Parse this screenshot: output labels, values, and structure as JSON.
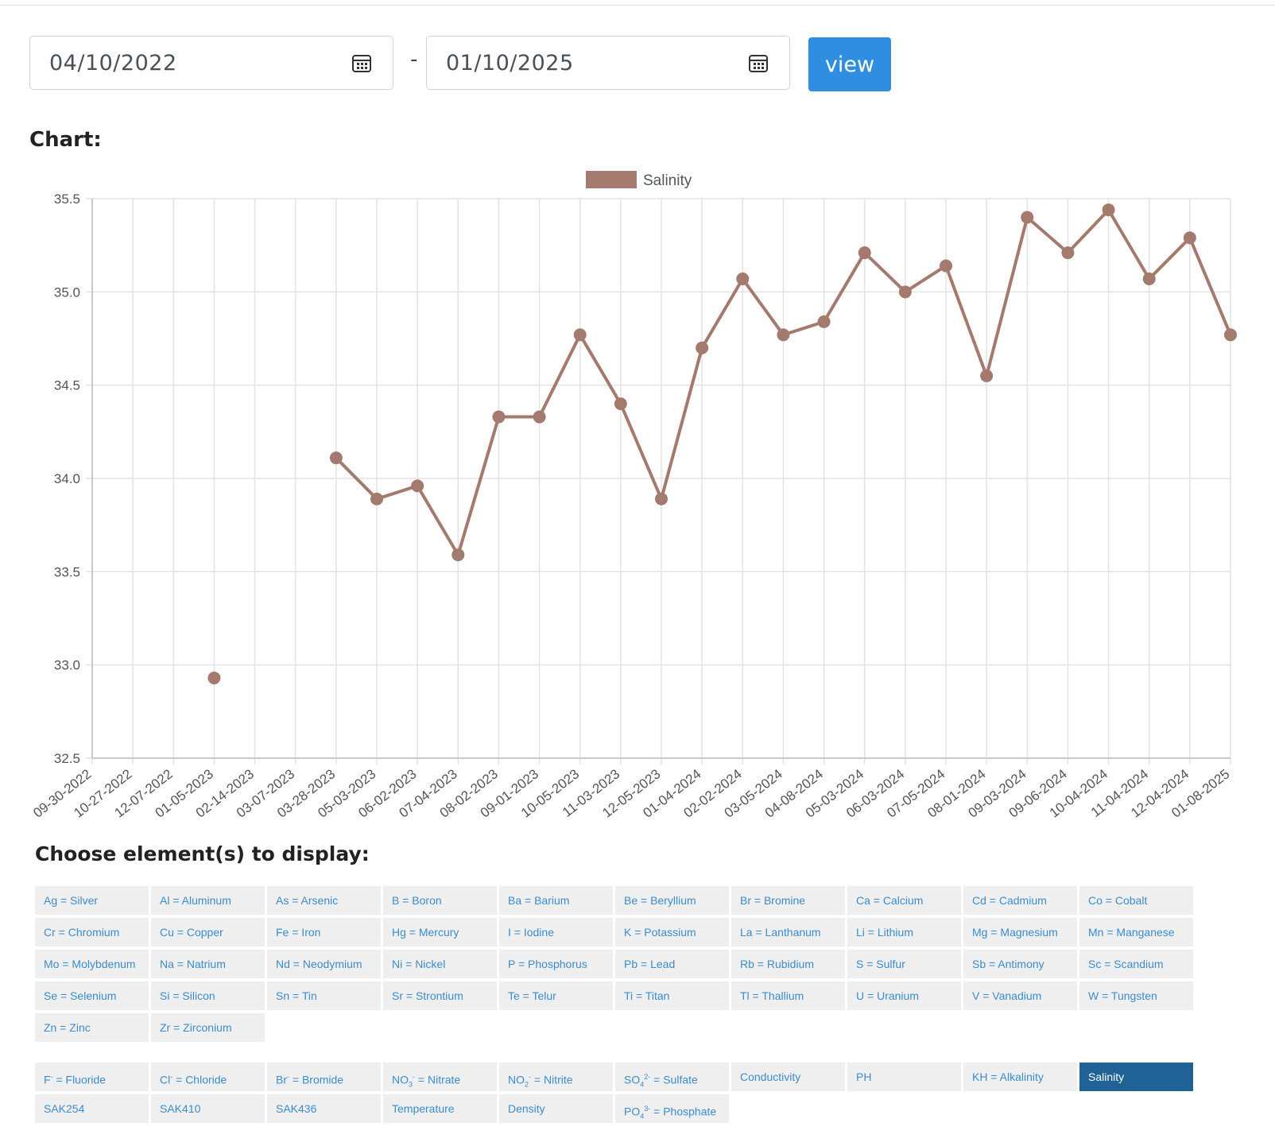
{
  "filters": {
    "start_date": "04/10/2022",
    "separator": "-",
    "end_date": "01/10/2025",
    "view_label": "view"
  },
  "chart_heading": "Chart:",
  "choose_heading": "Choose element(s) to display:",
  "chart_data": {
    "type": "line",
    "title": "",
    "xlabel": "",
    "ylabel": "",
    "ylim": [
      32.5,
      35.5
    ],
    "yticks": [
      "35.5",
      "35.0",
      "34.5",
      "34.0",
      "33.5",
      "33.0",
      "32.5"
    ],
    "grid": true,
    "legend_position": "top-center",
    "categories": [
      "09-30-2022",
      "10-27-2022",
      "12-07-2022",
      "01-05-2023",
      "02-14-2023",
      "03-07-2023",
      "03-28-2023",
      "05-03-2023",
      "06-02-2023",
      "07-04-2023",
      "08-02-2023",
      "09-01-2023",
      "10-05-2023",
      "11-03-2023",
      "12-05-2023",
      "01-04-2024",
      "02-02-2024",
      "03-05-2024",
      "04-08-2024",
      "05-03-2024",
      "06-03-2024",
      "07-05-2024",
      "08-01-2024",
      "09-03-2024",
      "09-06-2024",
      "10-04-2024",
      "11-04-2024",
      "12-04-2024",
      "01-08-2025"
    ],
    "series": [
      {
        "name": "Salinity",
        "color": "#a47a6e",
        "values": [
          null,
          null,
          null,
          32.93,
          null,
          null,
          34.11,
          33.89,
          33.96,
          33.59,
          34.33,
          34.33,
          34.77,
          34.4,
          33.89,
          34.7,
          35.07,
          34.77,
          34.84,
          35.21,
          35.0,
          35.14,
          34.55,
          35.4,
          35.21,
          35.44,
          35.07,
          35.29,
          34.77
        ]
      }
    ]
  },
  "elements": [
    {
      "sym": "Ag",
      "sub": "",
      "sup": "",
      "label": " = Silver",
      "active": false
    },
    {
      "sym": "Al",
      "sub": "",
      "sup": "",
      "label": " = Aluminum",
      "active": false
    },
    {
      "sym": "As",
      "sub": "",
      "sup": "",
      "label": " = Arsenic",
      "active": false
    },
    {
      "sym": "B",
      "sub": "",
      "sup": "",
      "label": " = Boron",
      "active": false
    },
    {
      "sym": "Ba",
      "sub": "",
      "sup": "",
      "label": " = Barium",
      "active": false
    },
    {
      "sym": "Be",
      "sub": "",
      "sup": "",
      "label": " = Beryllium",
      "active": false
    },
    {
      "sym": "Br",
      "sub": "",
      "sup": "",
      "label": " = Bromine",
      "active": false
    },
    {
      "sym": "Ca",
      "sub": "",
      "sup": "",
      "label": " = Calcium",
      "active": false
    },
    {
      "sym": "Cd",
      "sub": "",
      "sup": "",
      "label": " = Cadmium",
      "active": false
    },
    {
      "sym": "Co",
      "sub": "",
      "sup": "",
      "label": " = Cobalt",
      "active": false
    },
    {
      "sym": "Cr",
      "sub": "",
      "sup": "",
      "label": " = Chromium",
      "active": false
    },
    {
      "sym": "Cu",
      "sub": "",
      "sup": "",
      "label": " = Copper",
      "active": false
    },
    {
      "sym": "Fe",
      "sub": "",
      "sup": "",
      "label": " = Iron",
      "active": false
    },
    {
      "sym": "Hg",
      "sub": "",
      "sup": "",
      "label": " = Mercury",
      "active": false
    },
    {
      "sym": "I",
      "sub": "",
      "sup": "",
      "label": " = Iodine",
      "active": false
    },
    {
      "sym": "K",
      "sub": "",
      "sup": "",
      "label": " = Potassium",
      "active": false
    },
    {
      "sym": "La",
      "sub": "",
      "sup": "",
      "label": " = Lanthanum",
      "active": false
    },
    {
      "sym": "Li",
      "sub": "",
      "sup": "",
      "label": " = Lithium",
      "active": false
    },
    {
      "sym": "Mg",
      "sub": "",
      "sup": "",
      "label": " = Magnesium",
      "active": false
    },
    {
      "sym": "Mn",
      "sub": "",
      "sup": "",
      "label": " = Manganese",
      "active": false
    },
    {
      "sym": "Mo",
      "sub": "",
      "sup": "",
      "label": " = Molybdenum",
      "active": false
    },
    {
      "sym": "Na",
      "sub": "",
      "sup": "",
      "label": " = Natrium",
      "active": false
    },
    {
      "sym": "Nd",
      "sub": "",
      "sup": "",
      "label": " = Neodymium",
      "active": false
    },
    {
      "sym": "Ni",
      "sub": "",
      "sup": "",
      "label": " = Nickel",
      "active": false
    },
    {
      "sym": "P",
      "sub": "",
      "sup": "",
      "label": " = Phosphorus",
      "active": false
    },
    {
      "sym": "Pb",
      "sub": "",
      "sup": "",
      "label": " = Lead",
      "active": false
    },
    {
      "sym": "Rb",
      "sub": "",
      "sup": "",
      "label": " = Rubidium",
      "active": false
    },
    {
      "sym": "S",
      "sub": "",
      "sup": "",
      "label": " = Sulfur",
      "active": false
    },
    {
      "sym": "Sb",
      "sub": "",
      "sup": "",
      "label": " = Antimony",
      "active": false
    },
    {
      "sym": "Sc",
      "sub": "",
      "sup": "",
      "label": " = Scandium",
      "active": false
    },
    {
      "sym": "Se",
      "sub": "",
      "sup": "",
      "label": " = Selenium",
      "active": false
    },
    {
      "sym": "Si",
      "sub": "",
      "sup": "",
      "label": " = Silicon",
      "active": false
    },
    {
      "sym": "Sn",
      "sub": "",
      "sup": "",
      "label": " = Tin",
      "active": false
    },
    {
      "sym": "Sr",
      "sub": "",
      "sup": "",
      "label": " = Strontium",
      "active": false
    },
    {
      "sym": "Te",
      "sub": "",
      "sup": "",
      "label": " = Telur",
      "active": false
    },
    {
      "sym": "Ti",
      "sub": "",
      "sup": "",
      "label": " = Titan",
      "active": false
    },
    {
      "sym": "Tl",
      "sub": "",
      "sup": "",
      "label": " = Thallium",
      "active": false
    },
    {
      "sym": "U",
      "sub": "",
      "sup": "",
      "label": " = Uranium",
      "active": false
    },
    {
      "sym": "V",
      "sub": "",
      "sup": "",
      "label": " = Vanadium",
      "active": false
    },
    {
      "sym": "W",
      "sub": "",
      "sup": "",
      "label": " = Tungsten",
      "active": false
    },
    {
      "sym": "Zn",
      "sub": "",
      "sup": "",
      "label": " = Zinc",
      "active": false
    },
    {
      "sym": "Zr",
      "sub": "",
      "sup": "",
      "label": " = Zirconium",
      "active": false
    }
  ],
  "ions": [
    {
      "sym": "F",
      "sub": "",
      "sup": "-",
      "label": " = Fluoride",
      "active": false
    },
    {
      "sym": "Cl",
      "sub": "",
      "sup": "-",
      "label": " = Chloride",
      "active": false
    },
    {
      "sym": "Br",
      "sub": "",
      "sup": "-",
      "label": " = Bromide",
      "active": false
    },
    {
      "sym": "NO",
      "sub": "3",
      "sup": "-",
      "label": " = Nitrate",
      "active": false
    },
    {
      "sym": "NO",
      "sub": "2",
      "sup": "-",
      "label": " = Nitrite",
      "active": false
    },
    {
      "sym": "SO",
      "sub": "4",
      "sup": "2-",
      "label": " = Sulfate",
      "active": false
    },
    {
      "sym": "Conductivity",
      "sub": "",
      "sup": "",
      "label": "",
      "active": false
    },
    {
      "sym": "PH",
      "sub": "",
      "sup": "",
      "label": "",
      "active": false
    },
    {
      "sym": "KH = Alkalinity",
      "sub": "",
      "sup": "",
      "label": "",
      "active": false
    },
    {
      "sym": "Salinity",
      "sub": "",
      "sup": "",
      "label": "",
      "active": true
    },
    {
      "sym": "SAK254",
      "sub": "",
      "sup": "",
      "label": "",
      "active": false
    },
    {
      "sym": "SAK410",
      "sub": "",
      "sup": "",
      "label": "",
      "active": false
    },
    {
      "sym": "SAK436",
      "sub": "",
      "sup": "",
      "label": "",
      "active": false
    },
    {
      "sym": "Temperature",
      "sub": "",
      "sup": "",
      "label": "",
      "active": false
    },
    {
      "sym": "Density",
      "sub": "",
      "sup": "",
      "label": "",
      "active": false
    },
    {
      "sym": "PO",
      "sub": "4",
      "sup": "3-",
      "label": " = Phosphate",
      "active": false
    }
  ]
}
